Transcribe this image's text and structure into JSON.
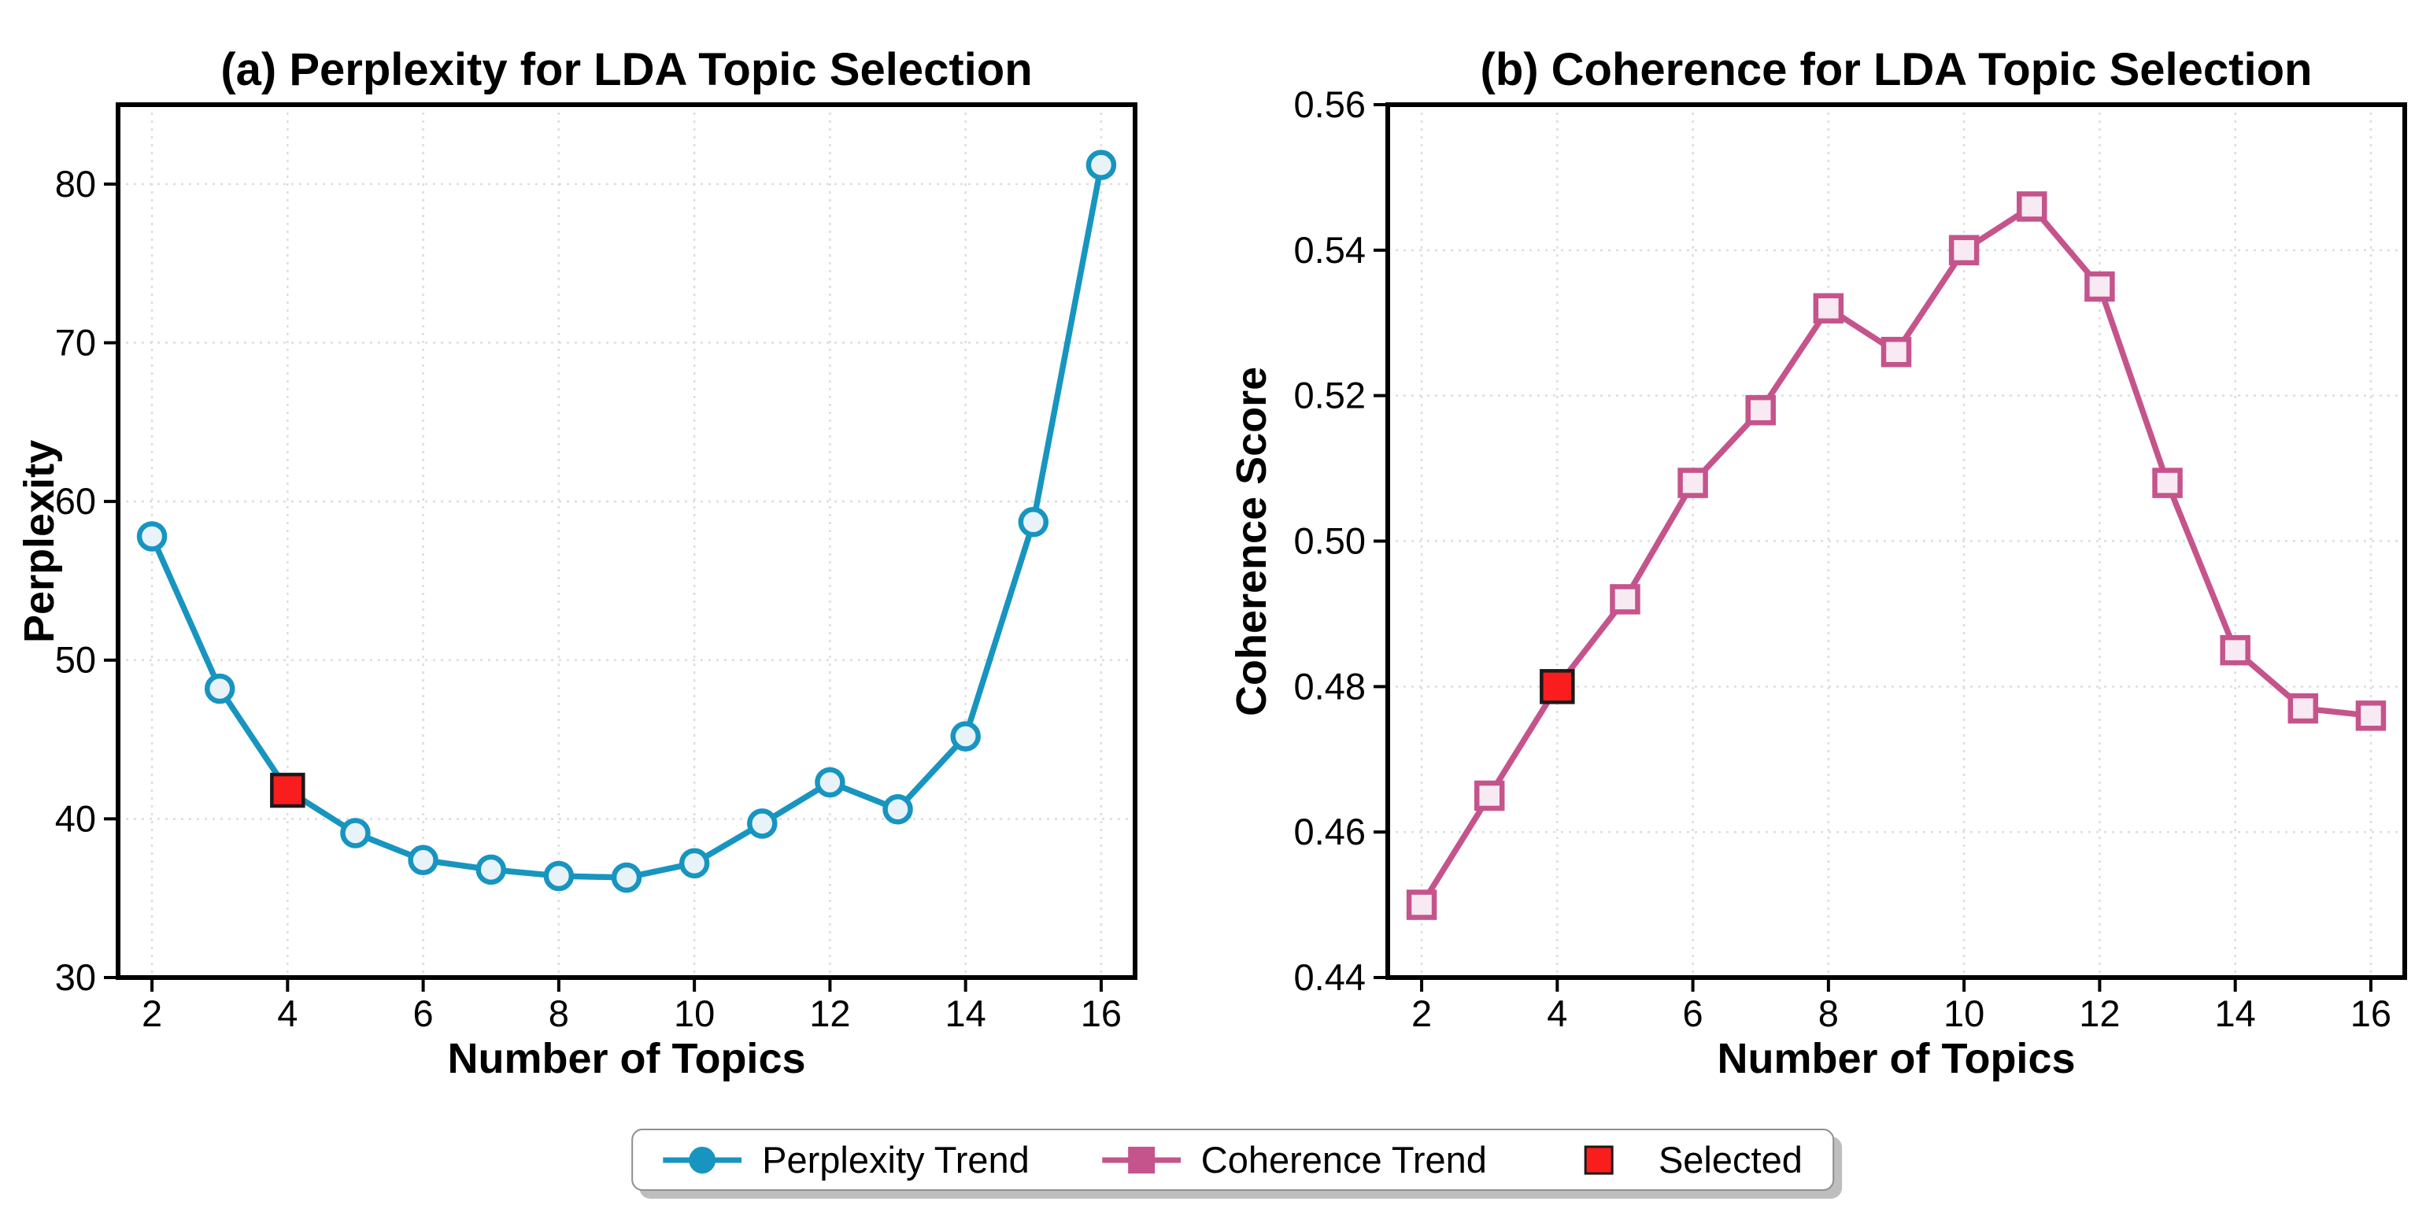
{
  "page": {
    "background": "#ffffff"
  },
  "chart_data": [
    {
      "type": "line",
      "panel": "a",
      "title": "(a) Perplexity for LDA Topic Selection",
      "xlabel": "Number of Topics",
      "ylabel": "Perplexity",
      "x": [
        2,
        3,
        4,
        5,
        6,
        7,
        8,
        9,
        10,
        11,
        12,
        13,
        14,
        15,
        16
      ],
      "series": [
        {
          "name": "Perplexity Trend",
          "marker": "circle",
          "color": "#1795c0",
          "marker_fill": "#e8f3f9",
          "values": [
            57.8,
            48.2,
            41.8,
            39.1,
            37.4,
            36.8,
            36.4,
            36.3,
            37.2,
            39.7,
            42.3,
            40.6,
            45.2,
            58.7,
            81.2
          ]
        }
      ],
      "selected": {
        "x": 4,
        "y": 41.8,
        "color": "#f91d1d",
        "edge": "#1a1a1a"
      },
      "xlim": [
        1.5,
        16.5
      ],
      "ylim": [
        30,
        85
      ],
      "xticks": [
        2,
        4,
        6,
        8,
        10,
        12,
        14,
        16
      ],
      "xtick_labels": [
        "2",
        "4",
        "6",
        "8",
        "10",
        "12",
        "14",
        "16"
      ],
      "yticks": [
        30,
        40,
        50,
        60,
        70,
        80
      ],
      "ytick_labels": [
        "30",
        "40",
        "50",
        "60",
        "70",
        "80"
      ],
      "grid": true,
      "legend_position": "figure-bottom"
    },
    {
      "type": "line",
      "panel": "b",
      "title": "(b) Coherence for LDA Topic Selection",
      "xlabel": "Number of Topics",
      "ylabel": "Coherence Score",
      "x": [
        2,
        3,
        4,
        5,
        6,
        7,
        8,
        9,
        10,
        11,
        12,
        13,
        14,
        15,
        16
      ],
      "series": [
        {
          "name": "Coherence Trend",
          "marker": "square",
          "color": "#c5548c",
          "marker_fill": "#f8eaf2",
          "values": [
            0.45,
            0.465,
            0.48,
            0.492,
            0.508,
            0.518,
            0.532,
            0.526,
            0.54,
            0.546,
            0.535,
            0.508,
            0.485,
            0.477,
            0.476
          ]
        }
      ],
      "selected": {
        "x": 4,
        "y": 0.48,
        "color": "#f91d1d",
        "edge": "#1a1a1a"
      },
      "xlim": [
        1.5,
        16.5
      ],
      "ylim": [
        0.44,
        0.56
      ],
      "xticks": [
        2,
        4,
        6,
        8,
        10,
        12,
        14,
        16
      ],
      "xtick_labels": [
        "2",
        "4",
        "6",
        "8",
        "10",
        "12",
        "14",
        "16"
      ],
      "yticks": [
        0.44,
        0.46,
        0.48,
        0.5,
        0.52,
        0.54,
        0.56
      ],
      "ytick_labels": [
        "0.44",
        "0.46",
        "0.48",
        "0.50",
        "0.52",
        "0.54",
        "0.56"
      ],
      "grid": true,
      "legend_position": "figure-bottom"
    }
  ],
  "legend": {
    "items": [
      {
        "label": "Perplexity Trend",
        "swatch": "line-circle",
        "color": "#1795c0"
      },
      {
        "label": "Coherence Trend",
        "swatch": "line-square",
        "color": "#c5548c"
      },
      {
        "label": "Selected",
        "swatch": "square",
        "color": "#f91d1d",
        "edge": "#1a1a1a"
      }
    ]
  },
  "style": {
    "grid_color": "#dddddd",
    "spine_color": "#000000",
    "tick_color": "#000000"
  }
}
